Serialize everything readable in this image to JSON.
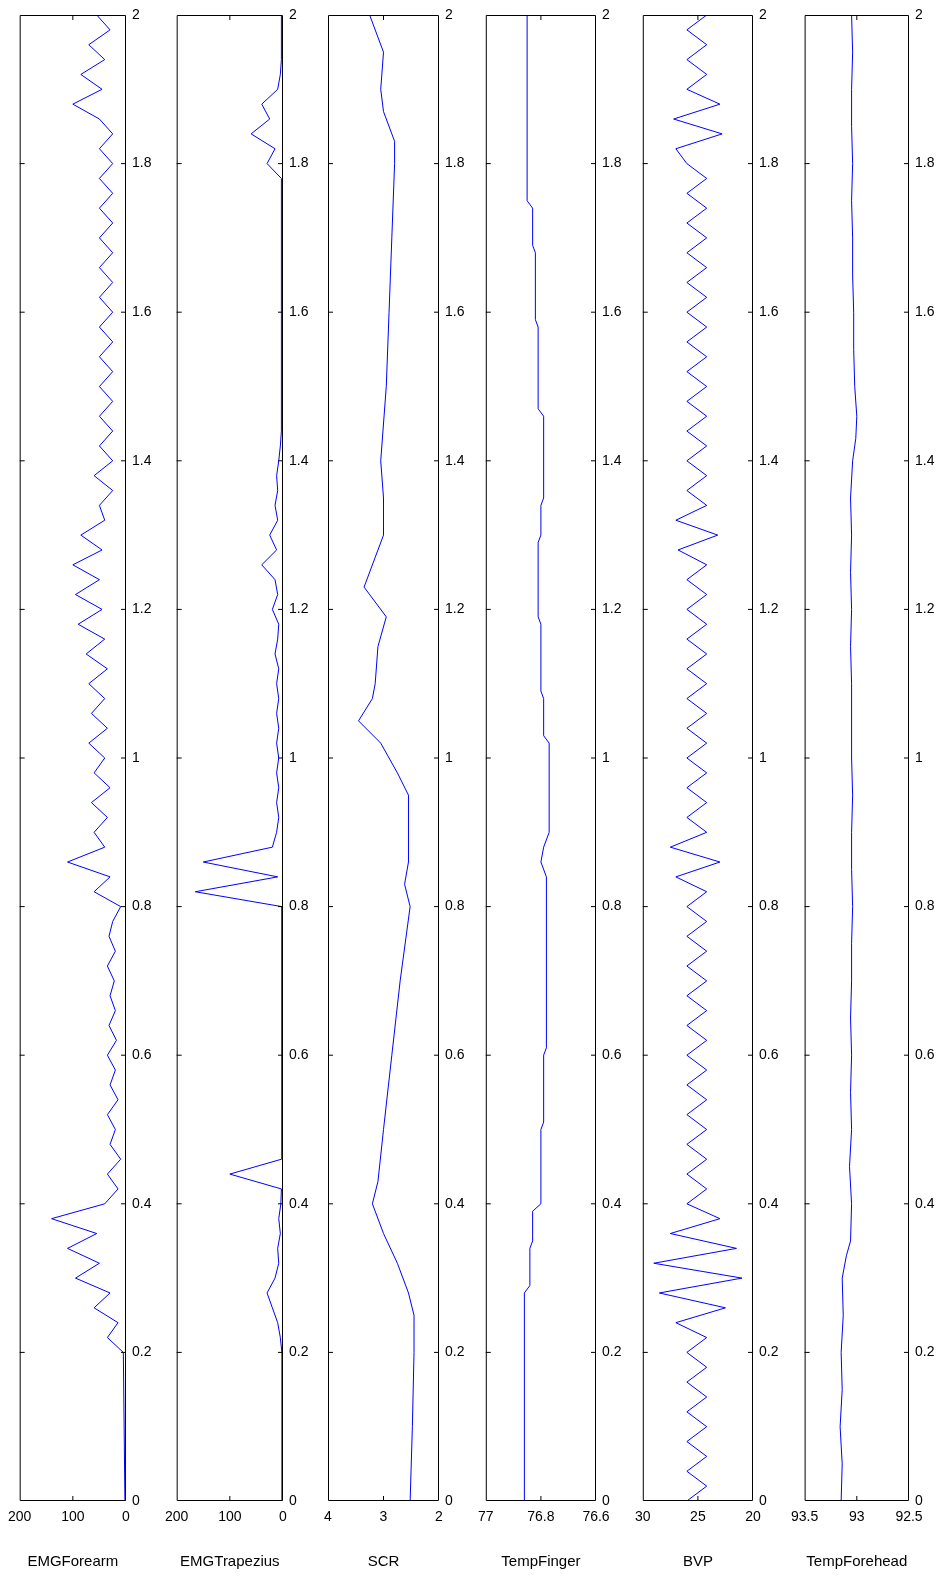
{
  "chart_data": [
    {
      "type": "line",
      "xlabel": "EMGForearm",
      "color": "#0000ff",
      "ylim": [
        0,
        2
      ],
      "yticks": [
        0,
        0.2,
        0.4,
        0.6,
        0.8,
        1,
        1.2,
        1.4,
        1.6,
        1.8,
        2
      ],
      "xlim": [
        200,
        0
      ],
      "xticks": [
        200,
        100,
        0
      ],
      "x": [
        2,
        5,
        35,
        15,
        60,
        30,
        95,
        50,
        110,
        55,
        140,
        40,
        15,
        35,
        10,
        30,
        20,
        35,
        15,
        30,
        20,
        35,
        18,
        32,
        20,
        30,
        22,
        35,
        20,
        32,
        25,
        10,
        60,
        30,
        110,
        40,
        60,
        35,
        65,
        30,
        60,
        40,
        70,
        35,
        65,
        40,
        70,
        35,
        75,
        40,
        90,
        45,
        95,
        50,
        100,
        45,
        85,
        40,
        50,
        25,
        60,
        25,
        50,
        25,
        50,
        25,
        50,
        25,
        50,
        25,
        50,
        25,
        50,
        25,
        50,
        25,
        50,
        25,
        50,
        25,
        50,
        25,
        50,
        25,
        50,
        100,
        45,
        85,
        40,
        70,
        30,
        55
      ],
      "values": [
        0,
        0.2,
        0.22,
        0.24,
        0.26,
        0.28,
        0.3,
        0.32,
        0.34,
        0.36,
        0.38,
        0.4,
        0.42,
        0.44,
        0.46,
        0.48,
        0.5,
        0.52,
        0.54,
        0.56,
        0.58,
        0.6,
        0.62,
        0.64,
        0.66,
        0.68,
        0.7,
        0.72,
        0.74,
        0.76,
        0.78,
        0.8,
        0.82,
        0.84,
        0.86,
        0.88,
        0.9,
        0.92,
        0.94,
        0.96,
        0.98,
        1,
        1.02,
        1.04,
        1.06,
        1.08,
        1.1,
        1.12,
        1.14,
        1.16,
        1.18,
        1.2,
        1.22,
        1.24,
        1.26,
        1.28,
        1.3,
        1.32,
        1.34,
        1.36,
        1.38,
        1.4,
        1.42,
        1.44,
        1.46,
        1.48,
        1.5,
        1.52,
        1.54,
        1.56,
        1.58,
        1.6,
        1.62,
        1.64,
        1.66,
        1.68,
        1.7,
        1.72,
        1.74,
        1.76,
        1.78,
        1.8,
        1.82,
        1.84,
        1.86,
        1.88,
        1.9,
        1.92,
        1.94,
        1.96,
        1.98,
        2
      ]
    },
    {
      "type": "line",
      "xlabel": "EMGTrapezius",
      "color": "#0000ff",
      "ylim": [
        0,
        2
      ],
      "yticks": [
        0,
        0.2,
        0.4,
        0.6,
        0.8,
        1,
        1.2,
        1.4,
        1.6,
        1.8,
        2
      ],
      "xlim": [
        200,
        0
      ],
      "xticks": [
        200,
        100,
        0
      ],
      "x": [
        2,
        2,
        2,
        2,
        2,
        2,
        2,
        2,
        2,
        2,
        3,
        5,
        10,
        20,
        30,
        15,
        8,
        10,
        5,
        8,
        4,
        3,
        100,
        3,
        2,
        3,
        2,
        3,
        2,
        2,
        3,
        2,
        3,
        2,
        2,
        3,
        2,
        3,
        2,
        2,
        3,
        165,
        10,
        150,
        20,
        12,
        8,
        12,
        8,
        12,
        8,
        12,
        8,
        12,
        8,
        12,
        8,
        15,
        10,
        8,
        20,
        10,
        15,
        40,
        12,
        25,
        10,
        15,
        10,
        12,
        8,
        5,
        3,
        3,
        3,
        3,
        3,
        3,
        3,
        3,
        3,
        3,
        3,
        3,
        3,
        3,
        3,
        3,
        3,
        3,
        30,
        15,
        60,
        25,
        40,
        10,
        5,
        3,
        3,
        3,
        3
      ],
      "values": [
        0,
        0.02,
        0.04,
        0.06,
        0.08,
        0.1,
        0.12,
        0.14,
        0.16,
        0.18,
        0.2,
        0.22,
        0.24,
        0.26,
        0.28,
        0.3,
        0.32,
        0.34,
        0.36,
        0.38,
        0.4,
        0.42,
        0.44,
        0.46,
        0.48,
        0.5,
        0.52,
        0.54,
        0.56,
        0.58,
        0.6,
        0.62,
        0.64,
        0.66,
        0.68,
        0.7,
        0.72,
        0.74,
        0.76,
        0.78,
        0.8,
        0.82,
        0.84,
        0.86,
        0.88,
        0.9,
        0.92,
        0.94,
        0.96,
        0.98,
        1,
        1.02,
        1.04,
        1.06,
        1.08,
        1.1,
        1.12,
        1.14,
        1.16,
        1.18,
        1.2,
        1.22,
        1.24,
        1.26,
        1.28,
        1.3,
        1.32,
        1.34,
        1.36,
        1.38,
        1.4,
        1.42,
        1.44,
        1.46,
        1.48,
        1.5,
        1.52,
        1.54,
        1.56,
        1.58,
        1.6,
        1.62,
        1.64,
        1.66,
        1.68,
        1.7,
        1.72,
        1.74,
        1.76,
        1.78,
        1.8,
        1.82,
        1.84,
        1.86,
        1.88,
        1.9,
        1.92,
        1.94,
        1.96,
        1.98,
        2
      ]
    },
    {
      "type": "line",
      "xlabel": "SCR",
      "color": "#0000ff",
      "ylim": [
        0,
        2
      ],
      "yticks": [
        0,
        0.2,
        0.4,
        0.6,
        0.8,
        1,
        1.2,
        1.4,
        1.6,
        1.8,
        2
      ],
      "xlim": [
        4,
        2
      ],
      "xticks": [
        4,
        3,
        2
      ],
      "x": [
        2.52,
        2.48,
        2.45,
        2.45,
        2.55,
        2.75,
        3.0,
        3.2,
        3.1,
        3.0,
        2.85,
        2.7,
        2.52,
        2.62,
        2.55,
        2.55,
        2.75,
        3.05,
        3.45,
        3.2,
        3.15,
        3.1,
        2.95,
        3.35,
        3.15,
        3.0,
        3.0,
        3.05,
        2.95,
        2.9,
        2.85,
        2.8,
        2.8,
        3.0,
        3.05,
        3.0,
        3.25
      ],
      "values": [
        0,
        0.1,
        0.2,
        0.25,
        0.28,
        0.32,
        0.36,
        0.4,
        0.43,
        0.5,
        0.6,
        0.7,
        0.8,
        0.83,
        0.86,
        0.95,
        0.98,
        1.02,
        1.05,
        1.08,
        1.1,
        1.15,
        1.19,
        1.23,
        1.27,
        1.3,
        1.35,
        1.4,
        1.5,
        1.6,
        1.7,
        1.8,
        1.83,
        1.87,
        1.9,
        1.95,
        2
      ]
    },
    {
      "type": "line",
      "xlabel": "TempFinger",
      "color": "#0000ff",
      "ylim": [
        0,
        2
      ],
      "yticks": [
        0,
        0.2,
        0.4,
        0.6,
        0.8,
        1,
        1.2,
        1.4,
        1.6,
        1.8,
        2
      ],
      "xlim": [
        77,
        76.6
      ],
      "xticks": [
        77,
        76.8,
        76.6
      ],
      "x": [
        76.86,
        76.86,
        76.84,
        76.84,
        76.83,
        76.83,
        76.8,
        76.8,
        76.79,
        76.79,
        76.78,
        76.78,
        76.8,
        76.79,
        76.77,
        76.77,
        76.79,
        76.79,
        76.8,
        76.8,
        76.81,
        76.81,
        76.8,
        76.8,
        76.79,
        76.79,
        76.81,
        76.81,
        76.82,
        76.82,
        76.83,
        76.83,
        76.85,
        76.85
      ],
      "values": [
        0,
        0.28,
        0.29,
        0.34,
        0.35,
        0.39,
        0.4,
        0.5,
        0.51,
        0.6,
        0.61,
        0.84,
        0.86,
        0.88,
        0.9,
        1.02,
        1.03,
        1.08,
        1.09,
        1.18,
        1.19,
        1.29,
        1.3,
        1.34,
        1.35,
        1.46,
        1.47,
        1.58,
        1.59,
        1.68,
        1.69,
        1.74,
        1.75,
        2
      ]
    },
    {
      "type": "line",
      "xlabel": "BVP",
      "color": "#0000ff",
      "ylim": [
        0,
        2
      ],
      "yticks": [
        0,
        0.2,
        0.4,
        0.6,
        0.8,
        1,
        1.2,
        1.4,
        1.6,
        1.8,
        2
      ],
      "xlim": [
        30,
        20
      ],
      "xticks": [
        30,
        25,
        20
      ],
      "x": [
        26,
        24.2,
        26,
        24.2,
        26,
        24.2,
        26,
        24.2,
        26,
        24.2,
        26,
        24.2,
        27,
        22.5,
        28.5,
        21,
        29,
        21.5,
        27.5,
        23,
        26,
        24.2,
        26,
        24.2,
        26,
        24.2,
        26,
        24.2,
        26,
        24.2,
        26,
        24.2,
        26,
        24.2,
        26,
        24.2,
        26,
        24.2,
        26,
        24.2,
        26,
        24.2,
        27,
        23,
        27.5,
        24.2,
        26,
        24.2,
        26,
        24.2,
        26,
        24.2,
        26,
        24.2,
        26,
        24.2,
        26,
        24.2,
        26,
        24.2,
        26,
        24.2,
        26,
        24.2,
        26.8,
        23.2,
        27,
        24.2,
        26,
        24.2,
        26,
        24.2,
        26,
        24.2,
        26,
        24.2,
        26,
        24.2,
        26,
        24.2,
        26,
        24.2,
        26,
        24.2,
        26,
        24.2,
        26,
        24.2,
        26,
        24.2,
        26,
        27,
        22.8,
        27.2,
        23,
        26,
        24.2,
        26,
        24.2,
        26,
        24.2
      ],
      "values": [
        0,
        0.02,
        0.04,
        0.06,
        0.08,
        0.1,
        0.12,
        0.14,
        0.16,
        0.18,
        0.2,
        0.22,
        0.24,
        0.26,
        0.28,
        0.3,
        0.32,
        0.34,
        0.36,
        0.38,
        0.4,
        0.42,
        0.44,
        0.46,
        0.48,
        0.5,
        0.52,
        0.54,
        0.56,
        0.58,
        0.6,
        0.62,
        0.64,
        0.66,
        0.68,
        0.7,
        0.72,
        0.74,
        0.76,
        0.78,
        0.8,
        0.82,
        0.84,
        0.86,
        0.88,
        0.9,
        0.92,
        0.94,
        0.96,
        0.98,
        1,
        1.02,
        1.04,
        1.06,
        1.08,
        1.1,
        1.12,
        1.14,
        1.16,
        1.18,
        1.2,
        1.22,
        1.24,
        1.26,
        1.28,
        1.3,
        1.32,
        1.34,
        1.36,
        1.38,
        1.4,
        1.42,
        1.44,
        1.46,
        1.48,
        1.5,
        1.52,
        1.54,
        1.56,
        1.58,
        1.6,
        1.62,
        1.64,
        1.66,
        1.68,
        1.7,
        1.72,
        1.74,
        1.76,
        1.78,
        1.8,
        1.82,
        1.84,
        1.86,
        1.88,
        1.9,
        1.92,
        1.94,
        1.96,
        1.98,
        2
      ]
    },
    {
      "type": "line",
      "xlabel": "TempForehead",
      "color": "#0000ff",
      "ylim": [
        0,
        2
      ],
      "yticks": [
        0,
        0.2,
        0.4,
        0.6,
        0.8,
        1,
        1.2,
        1.4,
        1.6,
        1.8,
        2
      ],
      "xlim": [
        93.5,
        92.5
      ],
      "xticks": [
        93.5,
        93,
        92.5
      ],
      "x": [
        93.15,
        93.14,
        93.16,
        93.14,
        93.15,
        93.13,
        93.14,
        93.1,
        93.06,
        93.05,
        93.07,
        93.05,
        93.06,
        93.05,
        93.06,
        93.05,
        93.05,
        93.04,
        93.05,
        93.05,
        93.04,
        93.05,
        93.05,
        93.06,
        93.05,
        93.06,
        93.05,
        93.06,
        93.04,
        93.01,
        93.0,
        93.02,
        93.03,
        93.03,
        93.04,
        93.04,
        93.05,
        93.04,
        93.05,
        93.05,
        93.04,
        93.05
      ],
      "values": [
        0,
        0.05,
        0.1,
        0.15,
        0.2,
        0.25,
        0.3,
        0.33,
        0.35,
        0.4,
        0.45,
        0.5,
        0.55,
        0.6,
        0.65,
        0.7,
        0.75,
        0.8,
        0.85,
        0.9,
        0.95,
        1,
        1.1,
        1.15,
        1.2,
        1.25,
        1.3,
        1.35,
        1.4,
        1.43,
        1.46,
        1.5,
        1.55,
        1.6,
        1.65,
        1.7,
        1.75,
        1.8,
        1.85,
        1.9,
        1.95,
        2
      ]
    }
  ]
}
